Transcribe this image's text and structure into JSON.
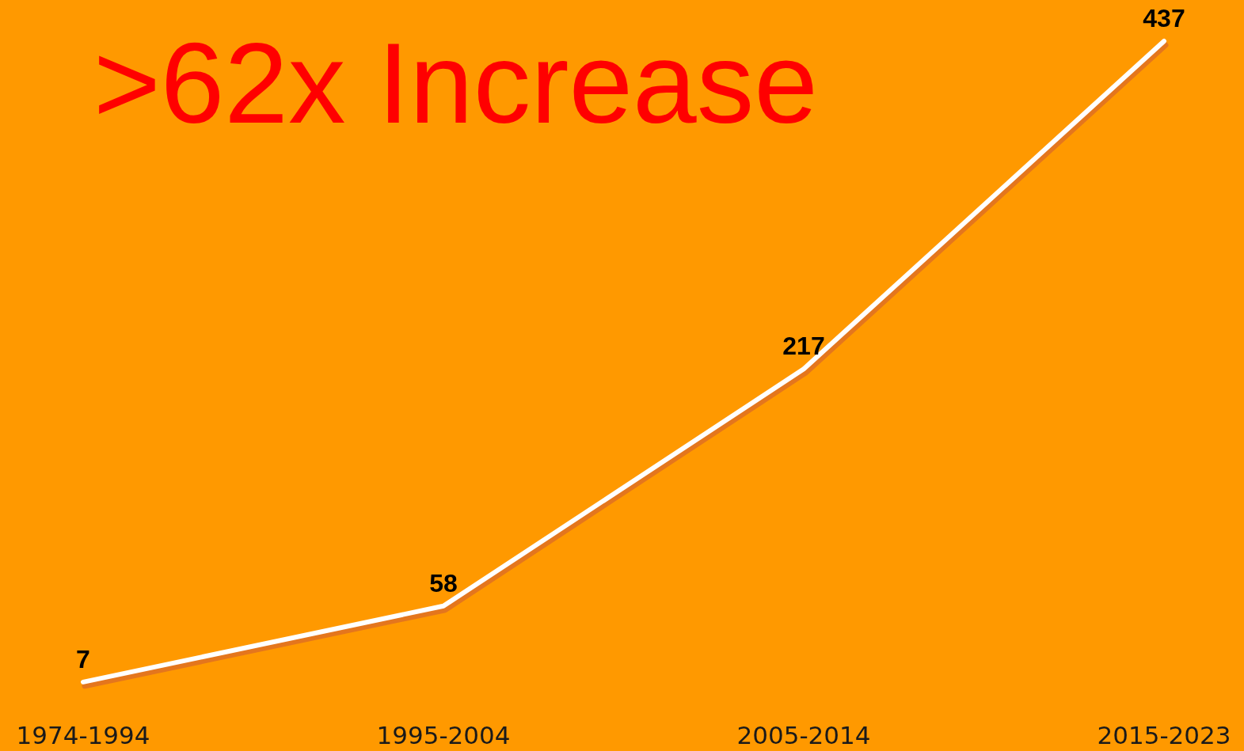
{
  "chart_data": {
    "type": "line",
    "title": ">62x Increase",
    "categories": [
      "1974-1994",
      "1995-2004",
      "2005-2014",
      "2015-2023"
    ],
    "series": [
      {
        "color": "#ffffff",
        "values": [
          7,
          58,
          217,
          437
        ]
      }
    ],
    "data_labels": true,
    "marker": "none",
    "line_style": "solid"
  }
}
